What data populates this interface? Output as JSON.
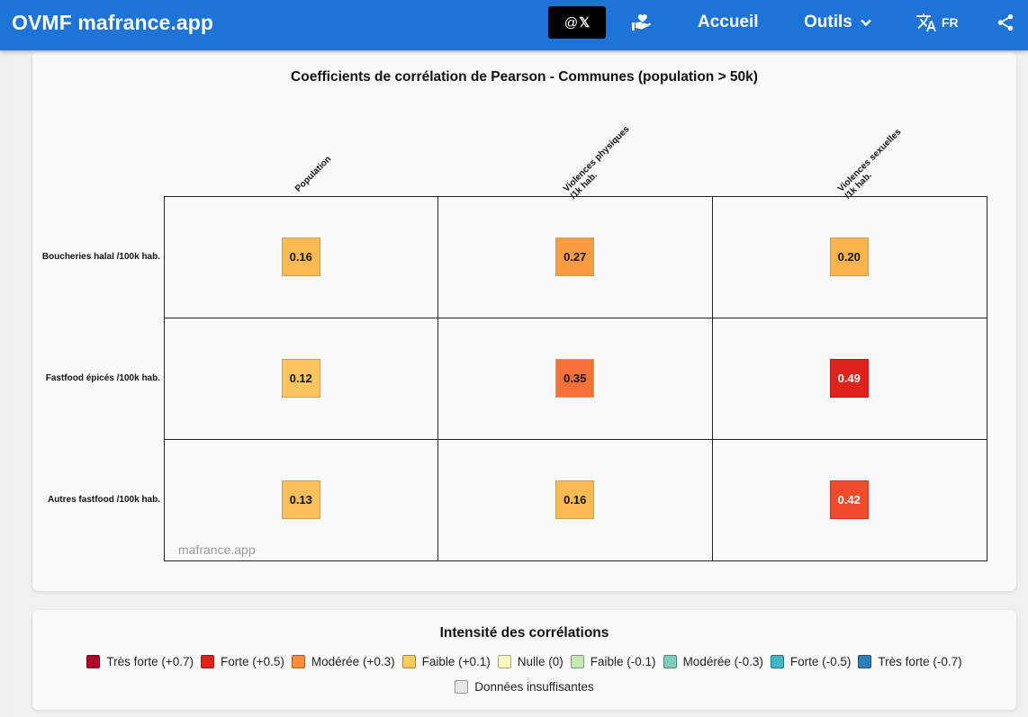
{
  "header": {
    "brand": "OVMF mafrance.app",
    "x_prefix": "@",
    "x_logo": "𝕏",
    "home": "Accueil",
    "tools": "Outils",
    "lang": "FR",
    "icons": [
      "hand-heart-icon",
      "chevron-down-icon",
      "translate-icon",
      "share-icon"
    ]
  },
  "chart": {
    "title": "Coefficients de corrélation de Pearson - Communes (population > 50k)",
    "columns": [
      "Population",
      "Violences physiques\n/1k hab.",
      "Violences sexuelles\n/1k hab."
    ],
    "rows": [
      "Boucheries halal /100k hab.",
      "Fastfood épicés /100k hab.",
      "Autres fastfood /100k hab."
    ],
    "watermark": "mafrance.app"
  },
  "chart_data": {
    "type": "heatmap",
    "title": "Coefficients de corrélation de Pearson - Communes (population > 50k)",
    "x_categories": [
      "Population",
      "Violences physiques /1k hab.",
      "Violences sexuelles /1k hab."
    ],
    "y_categories": [
      "Boucheries halal /100k hab.",
      "Fastfood épicés /100k hab.",
      "Autres fastfood /100k hab."
    ],
    "values": [
      [
        0.16,
        0.27,
        0.2
      ],
      [
        0.12,
        0.35,
        0.49
      ],
      [
        0.13,
        0.16,
        0.42
      ]
    ],
    "labels": [
      [
        "0.16",
        "0.27",
        "0.20"
      ],
      [
        "0.12",
        "0.35",
        "0.49"
      ],
      [
        "0.13",
        "0.16",
        "0.42"
      ]
    ],
    "colors": [
      [
        "#fdba52",
        "#fd9b42",
        "#fdb24d"
      ],
      [
        "#fec55e",
        "#f7703a",
        "#e0221d"
      ],
      [
        "#fec05a",
        "#fdba52",
        "#ee4c2c"
      ]
    ],
    "text_colors": [
      [
        "#111111",
        "#111111",
        "#111111"
      ],
      [
        "#111111",
        "#111111",
        "#ffffff"
      ],
      [
        "#111111",
        "#111111",
        "#ffffff"
      ]
    ]
  },
  "legend": {
    "title": "Intensité des corrélations",
    "items": [
      {
        "label": "Très forte (+0.7)",
        "color": "#b2002a"
      },
      {
        "label": "Forte (+0.5)",
        "color": "#e3201c"
      },
      {
        "label": "Modérée (+0.3)",
        "color": "#fd8c3c"
      },
      {
        "label": "Faible (+0.1)",
        "color": "#fecb5e"
      },
      {
        "label": "Nulle (0)",
        "color": "#ffffc2"
      },
      {
        "label": "Faible (-0.1)",
        "color": "#c6e9b4"
      },
      {
        "label": "Modérée (-0.3)",
        "color": "#7fcdbb"
      },
      {
        "label": "Forte (-0.5)",
        "color": "#41b6c4"
      },
      {
        "label": "Très forte (-0.7)",
        "color": "#2c7fb8"
      }
    ],
    "insufficient": {
      "label": "Données insuffisantes",
      "color": "#e6e6e6"
    }
  }
}
